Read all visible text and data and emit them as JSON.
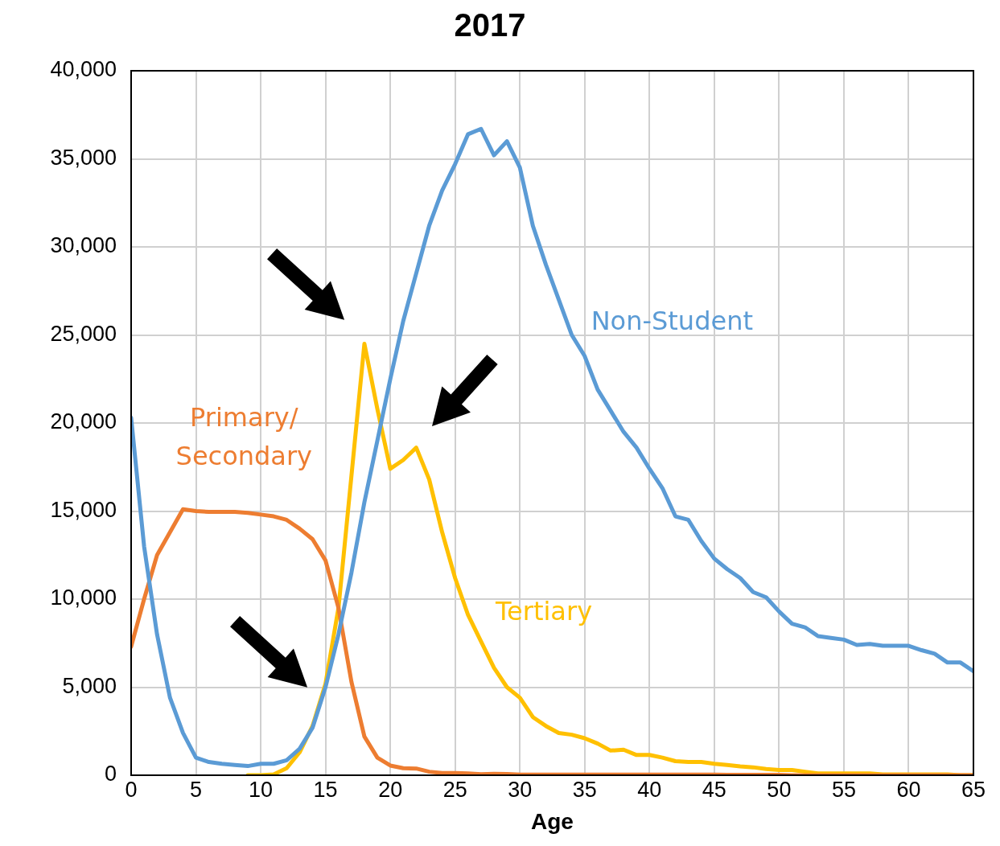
{
  "chart_data": {
    "type": "line",
    "title": "2017",
    "xlabel": "Age",
    "x": [
      0,
      1,
      2,
      3,
      4,
      5,
      6,
      7,
      8,
      9,
      10,
      11,
      12,
      13,
      14,
      15,
      16,
      17,
      18,
      19,
      20,
      21,
      22,
      23,
      24,
      25,
      26,
      27,
      28,
      29,
      30,
      31,
      32,
      33,
      34,
      35,
      36,
      37,
      38,
      39,
      40,
      41,
      42,
      43,
      44,
      45,
      46,
      47,
      48,
      49,
      50,
      51,
      52,
      53,
      54,
      55,
      56,
      57,
      58,
      59,
      60,
      61,
      62,
      63,
      64,
      65
    ],
    "series": [
      {
        "name": "Non-Student",
        "color": "#5b9bd5",
        "values": [
          20300,
          13000,
          8000,
          4400,
          2400,
          1000,
          750,
          650,
          580,
          520,
          650,
          650,
          850,
          1500,
          2700,
          5000,
          8000,
          11500,
          15500,
          19000,
          22500,
          25800,
          28500,
          31200,
          33200,
          34700,
          36400,
          36700,
          35200,
          36000,
          34500,
          31200,
          29000,
          27000,
          25000,
          23800,
          21900,
          20700,
          19500,
          18600,
          17400,
          16300,
          14700,
          14500,
          13300,
          12300,
          11700,
          11200,
          10400,
          10100,
          9300,
          8600,
          8400,
          7900,
          7800,
          7700,
          7400,
          7450,
          7350,
          7350,
          7350,
          7100,
          6900,
          6400,
          6400,
          5900
        ]
      },
      {
        "name": "Primary/Secondary",
        "color": "#ed7d31",
        "values": [
          7300,
          10000,
          12500,
          13800,
          15100,
          15000,
          14950,
          14950,
          14950,
          14900,
          14800,
          14700,
          14500,
          14000,
          13400,
          12200,
          9500,
          5300,
          2200,
          1000,
          550,
          400,
          380,
          200,
          130,
          120,
          100,
          60,
          80,
          70,
          30,
          30,
          30,
          30,
          30,
          30,
          30,
          30,
          30,
          30,
          30,
          30,
          30,
          30,
          30,
          30,
          20,
          20,
          20,
          20,
          20,
          0,
          0,
          0,
          0,
          0,
          0,
          0,
          0,
          0,
          0,
          0,
          0,
          0,
          0,
          0
        ]
      },
      {
        "name": "Tertiary",
        "color": "#ffc000",
        "x": [
          9,
          10,
          11,
          12,
          13,
          14,
          15,
          16,
          17,
          18,
          19,
          20,
          21,
          22,
          23,
          24,
          25,
          26,
          27,
          28,
          29,
          30,
          31,
          32,
          33,
          34,
          35,
          36,
          37,
          38,
          39,
          40,
          41,
          42,
          43,
          44,
          45,
          46,
          47,
          48,
          49,
          50,
          51,
          52,
          53,
          54,
          55,
          56,
          57,
          58,
          59,
          60,
          61,
          62,
          63,
          64,
          65
        ],
        "values": [
          0,
          0,
          50,
          400,
          1300,
          2800,
          5200,
          9500,
          17000,
          24500,
          20800,
          17400,
          17900,
          18600,
          16800,
          13800,
          11200,
          9100,
          7600,
          6100,
          5000,
          4400,
          3300,
          2800,
          2400,
          2300,
          2100,
          1800,
          1400,
          1450,
          1150,
          1150,
          1000,
          800,
          750,
          750,
          650,
          580,
          500,
          450,
          350,
          300,
          300,
          200,
          100,
          100,
          100,
          100,
          100,
          50,
          50,
          50,
          50,
          50,
          50,
          0,
          0
        ]
      }
    ],
    "xlim": [
      0,
      65
    ],
    "xticks": [
      0,
      5,
      10,
      15,
      20,
      25,
      30,
      35,
      40,
      45,
      50,
      55,
      60,
      65
    ],
    "ylim": [
      0,
      40000
    ],
    "yticks": [
      0,
      {
        "value": 5000,
        "label": "5,000"
      },
      {
        "value": 10000,
        "label": "10,000"
      },
      {
        "value": 15000,
        "label": "15,000"
      },
      {
        "value": 20000,
        "label": "20,000"
      },
      {
        "value": 25000,
        "label": "25,000"
      },
      {
        "value": 30000,
        "label": "30,000"
      },
      {
        "value": 35000,
        "label": "35,000"
      },
      {
        "value": 40000,
        "label": "40,000"
      }
    ],
    "grid": true,
    "legend": false,
    "marker": "none",
    "line_style": "solid"
  }
}
